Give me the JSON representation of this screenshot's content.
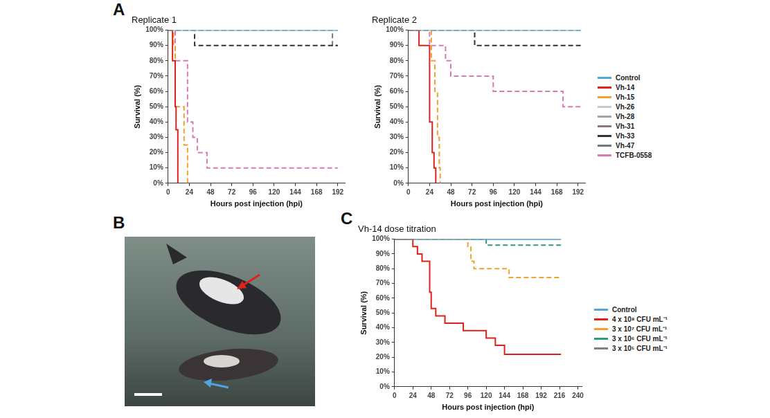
{
  "panel_labels": [
    "A",
    "B",
    "C"
  ],
  "chart_data": [
    {
      "type": "line",
      "title": "Replicate 1",
      "x_label": "Hours post injection (hpi)",
      "y_label": "Survival (%)",
      "xlim": [
        0,
        200
      ],
      "xticks": [
        0,
        24,
        48,
        72,
        96,
        120,
        144,
        168,
        192
      ],
      "ylim": [
        0,
        100
      ],
      "yticks": [
        {
          "value": 0,
          "label": "0%"
        },
        {
          "value": 10,
          "label": "10%"
        },
        {
          "value": 20,
          "label": "20%"
        },
        {
          "value": 30,
          "label": "30%"
        },
        {
          "value": 40,
          "label": "40%"
        },
        {
          "value": 50,
          "label": "50%"
        },
        {
          "value": 60,
          "label": "60%"
        },
        {
          "value": 70,
          "label": "70%"
        },
        {
          "value": 80,
          "label": "80%"
        },
        {
          "value": 90,
          "label": "90%"
        },
        {
          "value": 100,
          "label": "100%"
        }
      ],
      "grid": false,
      "series": [
        {
          "name": "Control",
          "color": "#4ea6dc",
          "line_style": "solid",
          "x": [
            0,
            192
          ],
          "values": [
            100,
            100
          ]
        },
        {
          "name": "Vh-14",
          "color": "#e0201b",
          "line_style": "solid",
          "x": [
            0,
            5,
            8,
            9,
            11
          ],
          "values": [
            100,
            80,
            50,
            35,
            0
          ]
        },
        {
          "name": "Vh-15",
          "color": "#f2a12c",
          "line_style": "dashed",
          "x": [
            0,
            6,
            8,
            18,
            22
          ],
          "values": [
            100,
            90,
            50,
            25,
            0
          ]
        },
        {
          "name": "Vh-26",
          "color": "#c9c9c9",
          "line_style": "dashed",
          "x": [
            0,
            192
          ],
          "values": [
            100,
            100
          ]
        },
        {
          "name": "Vh-28",
          "color": "#a3a3a3",
          "line_style": "dashed",
          "x": [
            0,
            192
          ],
          "values": [
            100,
            100
          ]
        },
        {
          "name": "Vh-31",
          "color": "#8a7a7a",
          "line_style": "dashed",
          "x": [
            0,
            192
          ],
          "values": [
            100,
            100
          ]
        },
        {
          "name": "Vh-33",
          "color": "#333333",
          "line_style": "dashed",
          "x": [
            0,
            30,
            192
          ],
          "values": [
            100,
            90,
            90
          ]
        },
        {
          "name": "Vh-47",
          "color": "#777777",
          "line_style": "dashed",
          "x": [
            0,
            186,
            192
          ],
          "values": [
            100,
            90,
            90
          ]
        },
        {
          "name": "TCFB-0558",
          "color": "#d97bb2",
          "line_style": "dashed",
          "x": [
            0,
            8,
            22,
            28,
            33,
            44,
            192
          ],
          "values": [
            100,
            80,
            40,
            30,
            20,
            10,
            10
          ]
        }
      ]
    },
    {
      "type": "line",
      "title": "Replicate 2",
      "x_label": "Hours post injection (hpi)",
      "y_label": "Survival (%)",
      "xlim": [
        0,
        200
      ],
      "xticks": [
        0,
        24,
        48,
        72,
        96,
        120,
        144,
        168,
        192
      ],
      "ylim": [
        0,
        100
      ],
      "yticks": [
        {
          "value": 0,
          "label": "0%"
        },
        {
          "value": 10,
          "label": "10%"
        },
        {
          "value": 20,
          "label": "20%"
        },
        {
          "value": 30,
          "label": "30%"
        },
        {
          "value": 40,
          "label": "40%"
        },
        {
          "value": 50,
          "label": "50%"
        },
        {
          "value": 60,
          "label": "60%"
        },
        {
          "value": 70,
          "label": "70%"
        },
        {
          "value": 80,
          "label": "80%"
        },
        {
          "value": 90,
          "label": "90%"
        },
        {
          "value": 100,
          "label": "100%"
        }
      ],
      "grid": false,
      "legend": "right",
      "series": [
        {
          "name": "Control",
          "color": "#4ea6dc",
          "line_style": "solid",
          "x": [
            0,
            195
          ],
          "values": [
            100,
            100
          ]
        },
        {
          "name": "Vh-14",
          "color": "#e0201b",
          "line_style": "solid",
          "x": [
            0,
            12,
            24,
            27,
            29,
            31
          ],
          "values": [
            100,
            90,
            40,
            20,
            10,
            0
          ]
        },
        {
          "name": "Vh-15",
          "color": "#f2a12c",
          "line_style": "dashed",
          "x": [
            0,
            26,
            30,
            33,
            35,
            36
          ],
          "values": [
            100,
            80,
            60,
            30,
            10,
            0
          ]
        },
        {
          "name": "Vh-26",
          "color": "#c9c9c9",
          "line_style": "dashed",
          "x": [
            0,
            195
          ],
          "values": [
            100,
            100
          ]
        },
        {
          "name": "Vh-28",
          "color": "#a3a3a3",
          "line_style": "dashed",
          "x": [
            0,
            195
          ],
          "values": [
            100,
            100
          ]
        },
        {
          "name": "Vh-31",
          "color": "#8a7a7a",
          "line_style": "dashed",
          "x": [
            0,
            195
          ],
          "values": [
            100,
            100
          ]
        },
        {
          "name": "Vh-33",
          "color": "#333333",
          "line_style": "dashed",
          "x": [
            0,
            75,
            195
          ],
          "values": [
            100,
            90,
            90
          ]
        },
        {
          "name": "Vh-47",
          "color": "#777777",
          "line_style": "dashed",
          "x": [
            0,
            195
          ],
          "values": [
            100,
            100
          ]
        },
        {
          "name": "TCFB-0558",
          "color": "#d97bb2",
          "line_style": "dashed",
          "x": [
            0,
            24,
            42,
            48,
            96,
            175,
            195
          ],
          "values": [
            100,
            90,
            80,
            70,
            60,
            50,
            50
          ]
        }
      ]
    },
    {
      "type": "line",
      "title": "Vh-14 dose titration",
      "x_label": "Hours post injection (hpi)",
      "y_label": "Survival (%)",
      "xlim": [
        0,
        245
      ],
      "xticks": [
        0,
        24,
        48,
        72,
        96,
        120,
        144,
        168,
        192,
        216,
        240
      ],
      "ylim": [
        0,
        100
      ],
      "yticks": [
        {
          "value": 0,
          "label": "0%"
        },
        {
          "value": 10,
          "label": "10%"
        },
        {
          "value": 20,
          "label": "20%"
        },
        {
          "value": 30,
          "label": "30%"
        },
        {
          "value": 40,
          "label": "40%"
        },
        {
          "value": 50,
          "label": "50%"
        },
        {
          "value": 60,
          "label": "60%"
        },
        {
          "value": 70,
          "label": "70%"
        },
        {
          "value": 80,
          "label": "80%"
        },
        {
          "value": 90,
          "label": "90%"
        },
        {
          "value": 100,
          "label": "100%"
        }
      ],
      "grid": false,
      "legend": "right",
      "series": [
        {
          "name": "Control",
          "color": "#4ea6dc",
          "line_style": "solid",
          "x": [
            0,
            218
          ],
          "values": [
            100,
            100
          ]
        },
        {
          "name": "4 x 10⁸ CFU mL⁻¹",
          "color": "#e0201b",
          "line_style": "solid",
          "x": [
            0,
            24,
            30,
            36,
            46,
            48,
            54,
            66,
            90,
            120,
            132,
            144,
            218
          ],
          "values": [
            100,
            95,
            90,
            85,
            64,
            53,
            48,
            43,
            38,
            33,
            28,
            22,
            22
          ]
        },
        {
          "name": "3 x 10⁷ CFU mL⁻¹",
          "color": "#f2a12c",
          "line_style": "dashed",
          "x": [
            0,
            96,
            100,
            104,
            150,
            218
          ],
          "values": [
            100,
            95,
            85,
            80,
            74,
            74
          ]
        },
        {
          "name": "3 x 10⁶ CFU mL⁻¹",
          "color": "#2e9c78",
          "line_style": "dashed",
          "x": [
            0,
            120,
            218
          ],
          "values": [
            100,
            96,
            96
          ]
        },
        {
          "name": "3 x 10⁵ CFU mL⁻¹",
          "color": "#808080",
          "line_style": "solid",
          "x": [
            0,
            218
          ],
          "values": [
            100,
            100
          ]
        }
      ]
    }
  ]
}
